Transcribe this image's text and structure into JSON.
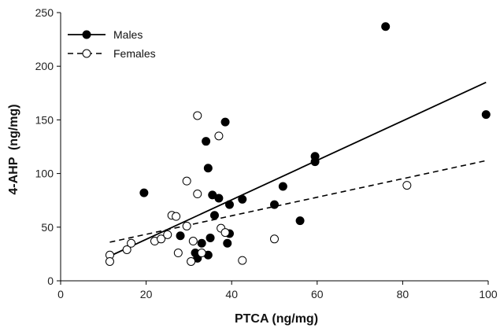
{
  "chart_data": {
    "type": "scatter",
    "title": "",
    "xlabel": "PTCA (ng/mg)",
    "ylabel": "4-AHP  (ng/mg)",
    "xlim": [
      0,
      100
    ],
    "ylim": [
      0,
      250
    ],
    "xticks": [
      "0",
      "20",
      "40",
      "60",
      "80",
      "100"
    ],
    "yticks": [
      "0",
      "50",
      "100",
      "150",
      "200",
      "250"
    ],
    "grid": false,
    "legend_position": "top-left",
    "series": [
      {
        "name": "Males",
        "marker": "filled-circle",
        "line": "solid",
        "color": "#000000",
        "trend": [
          [
            11.5,
            23
          ],
          [
            99.5,
            185
          ]
        ],
        "points": [
          [
            19.5,
            82
          ],
          [
            28,
            42
          ],
          [
            31.5,
            26
          ],
          [
            32,
            21
          ],
          [
            33,
            35
          ],
          [
            34,
            130
          ],
          [
            34.5,
            105
          ],
          [
            34.5,
            24
          ],
          [
            35,
            40
          ],
          [
            35.5,
            80
          ],
          [
            36,
            61
          ],
          [
            37,
            77
          ],
          [
            38.5,
            148
          ],
          [
            39,
            35
          ],
          [
            39.5,
            44
          ],
          [
            39.5,
            71
          ],
          [
            42.5,
            76
          ],
          [
            50,
            71
          ],
          [
            52,
            88
          ],
          [
            56,
            56
          ],
          [
            59.5,
            116
          ],
          [
            59.5,
            111
          ],
          [
            76,
            237
          ],
          [
            99.5,
            155
          ]
        ]
      },
      {
        "name": "Females",
        "marker": "open-circle",
        "line": "dashed",
        "color": "#000000",
        "trend": [
          [
            11.5,
            36
          ],
          [
            99.5,
            112
          ]
        ],
        "points": [
          [
            11.5,
            24
          ],
          [
            11.5,
            18
          ],
          [
            15.5,
            29
          ],
          [
            16.5,
            35
          ],
          [
            22,
            37
          ],
          [
            23.5,
            39
          ],
          [
            25,
            43
          ],
          [
            26,
            61
          ],
          [
            27,
            60
          ],
          [
            27.5,
            26
          ],
          [
            29.5,
            51
          ],
          [
            29.5,
            93
          ],
          [
            30.5,
            18
          ],
          [
            31,
            37
          ],
          [
            32,
            81
          ],
          [
            32,
            154
          ],
          [
            33,
            26
          ],
          [
            37,
            135
          ],
          [
            37.5,
            49
          ],
          [
            38.5,
            45
          ],
          [
            42.5,
            19
          ],
          [
            50,
            39
          ],
          [
            81,
            89
          ]
        ]
      }
    ]
  }
}
